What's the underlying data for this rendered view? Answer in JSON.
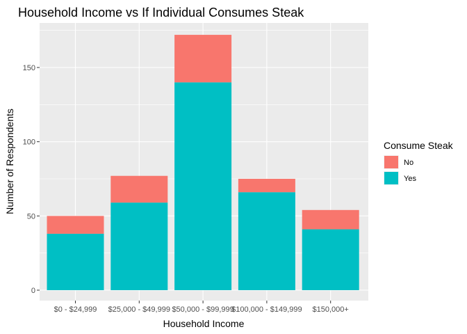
{
  "chart_data": {
    "type": "bar",
    "stacked": true,
    "title": "Household Income vs If Individual Consumes Steak",
    "xlabel": "Household Income",
    "ylabel": "Number of Respondents",
    "categories": [
      "$0 - $24,999",
      "$25,000 - $49,999",
      "$50,000 - $99,999",
      "$100,000 - $149,999",
      "$150,000+"
    ],
    "series": [
      {
        "name": "Yes",
        "values": [
          38,
          59,
          140,
          66,
          41
        ],
        "color": "#00BFC4"
      },
      {
        "name": "No",
        "values": [
          12,
          18,
          32,
          9,
          13
        ],
        "color": "#F8766D"
      }
    ],
    "ylim": [
      0,
      172
    ],
    "yticks": [
      0,
      50,
      100,
      150
    ],
    "grid": true,
    "legend": {
      "title": "Consume Steak",
      "placement": "right",
      "entries": [
        {
          "label": "No",
          "color": "#F8766D"
        },
        {
          "label": "Yes",
          "color": "#00BFC4"
        }
      ]
    },
    "panel_color": "#EBEBEB",
    "grid_color": "#FFFFFF"
  }
}
